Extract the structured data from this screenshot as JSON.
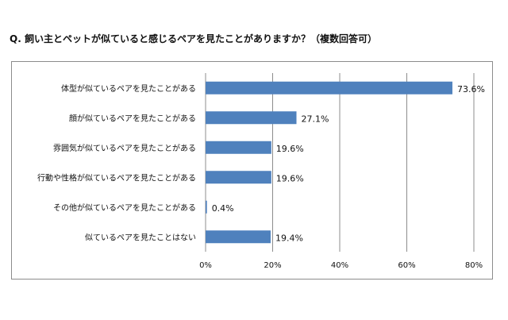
{
  "title": "Q. 飼い主とペットが似ていると感じるペアを見たことがありますか？（複数回答可）",
  "chart_data": {
    "type": "bar",
    "orientation": "horizontal",
    "categories": [
      "体型が似ているペアを見たことがある",
      "顔が似ているペアを見たことがある",
      "雰囲気が似ているペアを見たことがある",
      "行動や性格が似ているペアを見たことがある",
      "その他が似ているペアを見たことがある",
      "似ているペアを見たことはない"
    ],
    "values": [
      73.6,
      27.1,
      19.6,
      19.6,
      0.4,
      19.4
    ],
    "data_labels": [
      "73.6%",
      "27.1%",
      "19.6%",
      "19.6%",
      "0.4%",
      "19.4%"
    ],
    "xlim": [
      0,
      80
    ],
    "xticks": [
      "0%",
      "20%",
      "40%",
      "60%",
      "80%"
    ],
    "grid": true,
    "bar_color": "#4F81BD",
    "grid_color": "#8c8c8c"
  }
}
